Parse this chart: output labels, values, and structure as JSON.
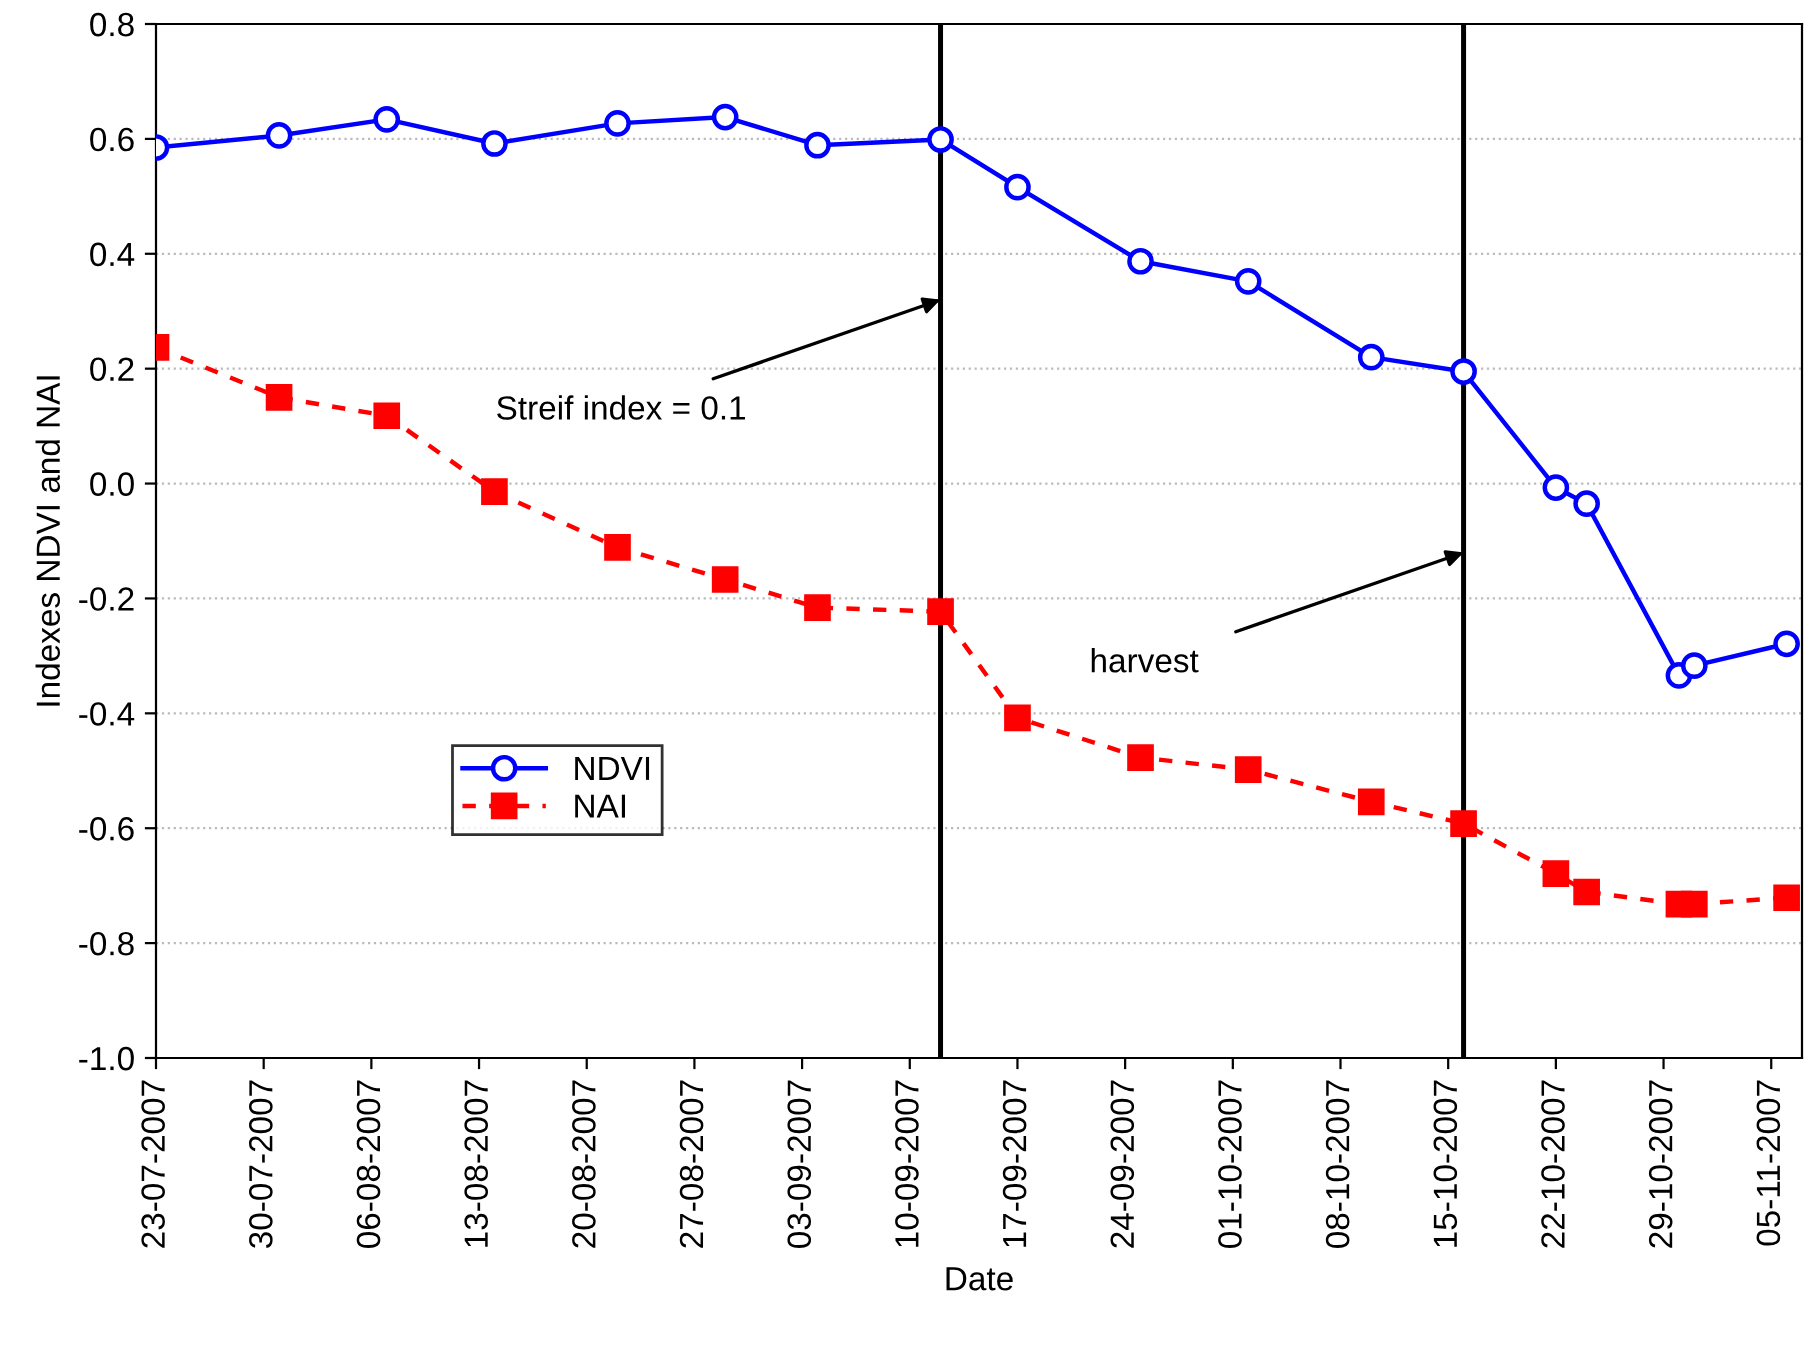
{
  "chart_data": {
    "type": "line",
    "xlabel": "Date",
    "ylabel": "Indexes NDVI and NAI",
    "x": [
      "2007-07-23",
      "2007-07-31",
      "2007-08-07",
      "2007-08-14",
      "2007-08-22",
      "2007-08-29",
      "2007-09-04",
      "2007-09-12",
      "2007-09-17",
      "2007-09-25",
      "2007-10-02",
      "2007-10-10",
      "2007-10-16",
      "2007-10-22",
      "2007-10-24",
      "2007-10-30",
      "2007-10-31",
      "2007-11-06"
    ],
    "series": [
      {
        "name": "NDVI",
        "color": "#0000ff",
        "marker": "circle",
        "line_style": "solid",
        "values": [
          0.585,
          0.606,
          0.634,
          0.592,
          0.627,
          0.638,
          0.589,
          0.599,
          0.516,
          0.387,
          0.352,
          0.22,
          0.195,
          -0.007,
          -0.035,
          -0.334,
          -0.317,
          -0.279
        ]
      },
      {
        "name": "NAI",
        "color": "#ff0000",
        "marker": "square",
        "line_style": "dashed",
        "values": [
          0.237,
          0.15,
          0.118,
          -0.014,
          -0.111,
          -0.167,
          -0.216,
          -0.223,
          -0.408,
          -0.477,
          -0.498,
          -0.554,
          -0.592,
          -0.679,
          -0.711,
          -0.732,
          -0.732,
          -0.721
        ]
      }
    ],
    "xlim": [
      "2007-07-23",
      "2007-11-07"
    ],
    "xticks": [
      {
        "value": "2007-07-23",
        "label": "23-07-2007"
      },
      {
        "value": "2007-07-30",
        "label": "30-07-2007"
      },
      {
        "value": "2007-08-06",
        "label": "06-08-2007"
      },
      {
        "value": "2007-08-13",
        "label": "13-08-2007"
      },
      {
        "value": "2007-08-20",
        "label": "20-08-2007"
      },
      {
        "value": "2007-08-27",
        "label": "27-08-2007"
      },
      {
        "value": "2007-09-03",
        "label": "03-09-2007"
      },
      {
        "value": "2007-09-10",
        "label": "10-09-2007"
      },
      {
        "value": "2007-09-17",
        "label": "17-09-2007"
      },
      {
        "value": "2007-09-24",
        "label": "24-09-2007"
      },
      {
        "value": "2007-10-01",
        "label": "01-10-2007"
      },
      {
        "value": "2007-10-08",
        "label": "08-10-2007"
      },
      {
        "value": "2007-10-15",
        "label": "15-10-2007"
      },
      {
        "value": "2007-10-22",
        "label": "22-10-2007"
      },
      {
        "value": "2007-10-29",
        "label": "29-10-2007"
      },
      {
        "value": "2007-11-05",
        "label": "05-11-2007"
      }
    ],
    "ylim": [
      -1.0,
      0.8
    ],
    "yticks": [
      {
        "value": -1.0,
        "label": "-1.0"
      },
      {
        "value": -0.8,
        "label": "-0.8"
      },
      {
        "value": -0.6,
        "label": "-0.6"
      },
      {
        "value": -0.4,
        "label": "-0.4"
      },
      {
        "value": -0.2,
        "label": "-0.2"
      },
      {
        "value": 0.0,
        "label": "0.0"
      },
      {
        "value": 0.2,
        "label": "0.2"
      },
      {
        "value": 0.4,
        "label": "0.4"
      },
      {
        "value": 0.6,
        "label": "0.6"
      },
      {
        "value": 0.8,
        "label": "0.8"
      }
    ],
    "ref_lines": [
      {
        "axis": "x",
        "value": "2007-09-12",
        "color": "#000000"
      },
      {
        "axis": "x",
        "value": "2007-10-16",
        "color": "#000000"
      }
    ],
    "annotations": [
      {
        "text": "Streif index = 0.1",
        "x": "2007-09-12",
        "y": 0.32
      },
      {
        "text": "harvest",
        "x": "2007-10-16",
        "y": -0.12
      }
    ],
    "grid": "y",
    "legend": "bottom left"
  }
}
